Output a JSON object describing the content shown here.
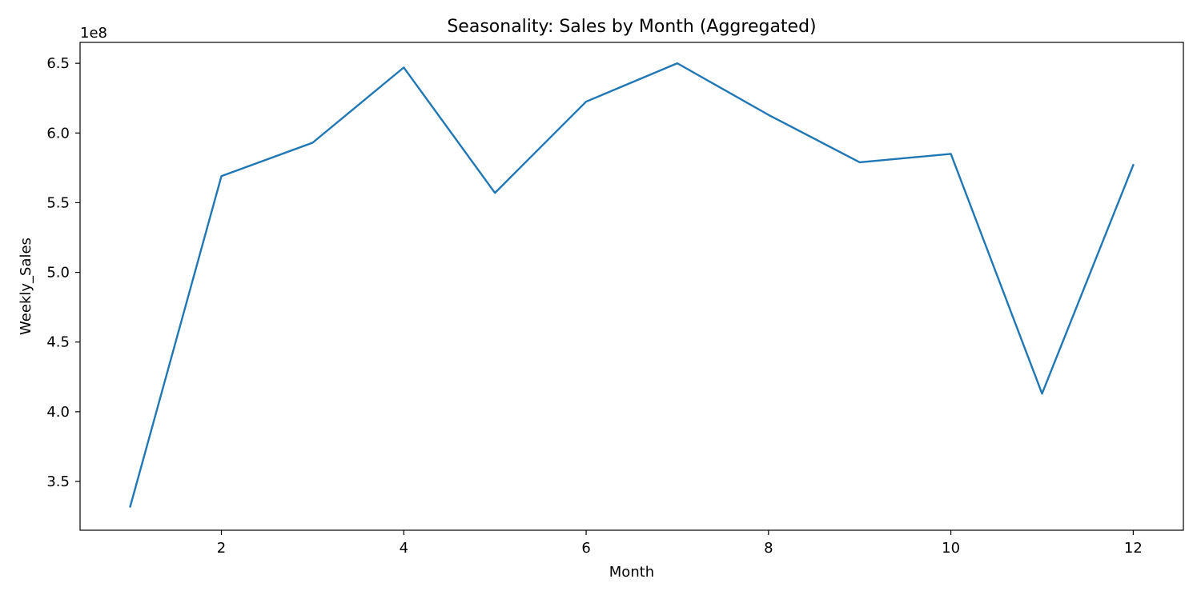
{
  "chart_data": {
    "type": "line",
    "title": "Seasonality: Sales by Month (Aggregated)",
    "xlabel": "Month",
    "ylabel": "Weekly_Sales",
    "y_offset_label": "1e8",
    "y_scale": 100000000,
    "xlim": [
      0.45,
      12.55
    ],
    "ylim": [
      3.15,
      6.65
    ],
    "x_ticks": [
      2,
      4,
      6,
      8,
      10,
      12
    ],
    "x_tick_labels": [
      "2",
      "4",
      "6",
      "8",
      "10",
      "12"
    ],
    "y_ticks": [
      3.5,
      4.0,
      4.5,
      5.0,
      5.5,
      6.0,
      6.5
    ],
    "y_tick_labels": [
      "3.5",
      "4.0",
      "4.5",
      "5.0",
      "5.5",
      "6.0",
      "6.5"
    ],
    "grid": false,
    "series": [
      {
        "color": "#1f77b4",
        "x": [
          1,
          2,
          3,
          4,
          5,
          6,
          7,
          8,
          9,
          10,
          11,
          12
        ],
        "y": [
          3.32,
          5.69,
          5.93,
          6.47,
          5.57,
          6.225,
          6.5,
          6.13,
          5.79,
          5.85,
          4.13,
          5.77
        ]
      }
    ]
  }
}
